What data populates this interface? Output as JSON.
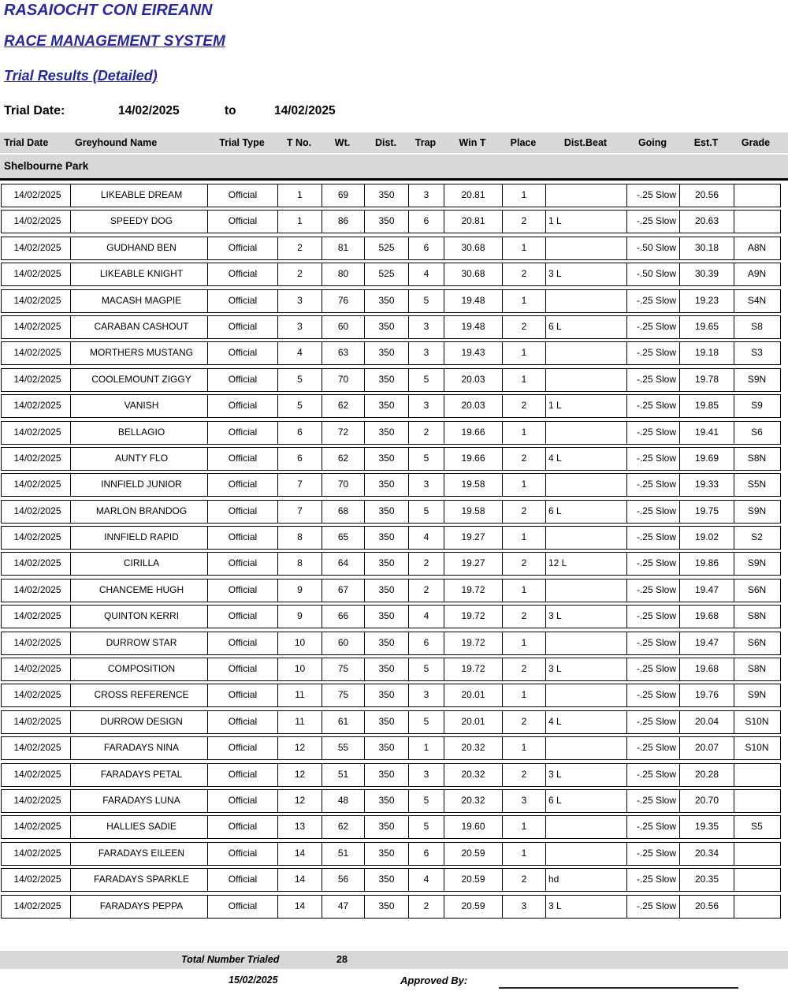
{
  "header": {
    "org_title": "RASAIOCHT CON EIREANN",
    "system_title": "RACE MANAGEMENT SYSTEM",
    "report_title": "Trial Results (Detailed)",
    "trial_date_label": "Trial Date:",
    "date_from": "14/02/2025",
    "to_word": "to",
    "date_to": "14/02/2025"
  },
  "table": {
    "columns": [
      "Trial Date",
      "Greyhound Name",
      "Trial Type",
      "T No.",
      "Wt.",
      "Dist.",
      "Trap",
      "Win T",
      "Place",
      "Dist.Beat",
      "Going",
      "Est.T",
      "Grade"
    ],
    "track_section": "Shelbourne Park",
    "rows": [
      [
        "14/02/2025",
        "LIKEABLE DREAM",
        "Official",
        "1",
        "69",
        "350",
        "3",
        "20.81",
        "1",
        "",
        "-.25 Slow",
        "20.56",
        ""
      ],
      [
        "14/02/2025",
        "SPEEDY DOG",
        "Official",
        "1",
        "86",
        "350",
        "6",
        "20.81",
        "2",
        "1 L",
        "-.25 Slow",
        "20.63",
        ""
      ],
      [
        "14/02/2025",
        "GUDHAND BEN",
        "Official",
        "2",
        "81",
        "525",
        "6",
        "30.68",
        "1",
        "",
        "-.50 Slow",
        "30.18",
        "A8N"
      ],
      [
        "14/02/2025",
        "LIKEABLE KNIGHT",
        "Official",
        "2",
        "80",
        "525",
        "4",
        "30.68",
        "2",
        "3 L",
        "-.50 Slow",
        "30.39",
        "A9N"
      ],
      [
        "14/02/2025",
        "MACASH MAGPIE",
        "Official",
        "3",
        "76",
        "350",
        "5",
        "19.48",
        "1",
        "",
        "-.25 Slow",
        "19.23",
        "S4N"
      ],
      [
        "14/02/2025",
        "CARABAN CASHOUT",
        "Official",
        "3",
        "60",
        "350",
        "3",
        "19.48",
        "2",
        "6 L",
        "-.25 Slow",
        "19.65",
        "S8"
      ],
      [
        "14/02/2025",
        "MORTHERS MUSTANG",
        "Official",
        "4",
        "63",
        "350",
        "3",
        "19.43",
        "1",
        "",
        "-.25 Slow",
        "19.18",
        "S3"
      ],
      [
        "14/02/2025",
        "COOLEMOUNT ZIGGY",
        "Official",
        "5",
        "70",
        "350",
        "5",
        "20.03",
        "1",
        "",
        "-.25 Slow",
        "19.78",
        "S9N"
      ],
      [
        "14/02/2025",
        "VANISH",
        "Official",
        "5",
        "62",
        "350",
        "3",
        "20.03",
        "2",
        "1 L",
        "-.25 Slow",
        "19.85",
        "S9"
      ],
      [
        "14/02/2025",
        "BELLAGIO",
        "Official",
        "6",
        "72",
        "350",
        "2",
        "19.66",
        "1",
        "",
        "-.25 Slow",
        "19.41",
        "S6"
      ],
      [
        "14/02/2025",
        "AUNTY FLO",
        "Official",
        "6",
        "62",
        "350",
        "5",
        "19.66",
        "2",
        "4 L",
        "-.25 Slow",
        "19.69",
        "S8N"
      ],
      [
        "14/02/2025",
        "INNFIELD JUNIOR",
        "Official",
        "7",
        "70",
        "350",
        "3",
        "19.58",
        "1",
        "",
        "-.25 Slow",
        "19.33",
        "S5N"
      ],
      [
        "14/02/2025",
        "MARLON BRANDOG",
        "Official",
        "7",
        "68",
        "350",
        "5",
        "19.58",
        "2",
        "6 L",
        "-.25 Slow",
        "19.75",
        "S9N"
      ],
      [
        "14/02/2025",
        "INNFIELD RAPID",
        "Official",
        "8",
        "65",
        "350",
        "4",
        "19.27",
        "1",
        "",
        "-.25 Slow",
        "19.02",
        "S2"
      ],
      [
        "14/02/2025",
        "CIRILLA",
        "Official",
        "8",
        "64",
        "350",
        "2",
        "19.27",
        "2",
        "12 L",
        "-.25 Slow",
        "19.86",
        "S9N"
      ],
      [
        "14/02/2025",
        "CHANCEME HUGH",
        "Official",
        "9",
        "67",
        "350",
        "2",
        "19.72",
        "1",
        "",
        "-.25 Slow",
        "19.47",
        "S6N"
      ],
      [
        "14/02/2025",
        "QUINTON KERRI",
        "Official",
        "9",
        "66",
        "350",
        "4",
        "19.72",
        "2",
        "3 L",
        "-.25 Slow",
        "19.68",
        "S8N"
      ],
      [
        "14/02/2025",
        "DURROW STAR",
        "Official",
        "10",
        "60",
        "350",
        "6",
        "19.72",
        "1",
        "",
        "-.25 Slow",
        "19.47",
        "S6N"
      ],
      [
        "14/02/2025",
        "COMPOSITION",
        "Official",
        "10",
        "75",
        "350",
        "5",
        "19.72",
        "2",
        "3 L",
        "-.25 Slow",
        "19.68",
        "S8N"
      ],
      [
        "14/02/2025",
        "CROSS REFERENCE",
        "Official",
        "11",
        "75",
        "350",
        "3",
        "20.01",
        "1",
        "",
        "-.25 Slow",
        "19.76",
        "S9N"
      ],
      [
        "14/02/2025",
        "DURROW DESIGN",
        "Official",
        "11",
        "61",
        "350",
        "5",
        "20.01",
        "2",
        "4 L",
        "-.25 Slow",
        "20.04",
        "S10N"
      ],
      [
        "14/02/2025",
        "FARADAYS NINA",
        "Official",
        "12",
        "55",
        "350",
        "1",
        "20.32",
        "1",
        "",
        "-.25 Slow",
        "20.07",
        "S10N"
      ],
      [
        "14/02/2025",
        "FARADAYS PETAL",
        "Official",
        "12",
        "51",
        "350",
        "3",
        "20.32",
        "2",
        "3 L",
        "-.25 Slow",
        "20.28",
        ""
      ],
      [
        "14/02/2025",
        "FARADAYS LUNA",
        "Official",
        "12",
        "48",
        "350",
        "5",
        "20.32",
        "3",
        "6 L",
        "-.25 Slow",
        "20.70",
        ""
      ],
      [
        "14/02/2025",
        "HALLIES SADIE",
        "Official",
        "13",
        "62",
        "350",
        "5",
        "19.60",
        "1",
        "",
        "-.25 Slow",
        "19.35",
        "S5"
      ],
      [
        "14/02/2025",
        "FARADAYS EILEEN",
        "Official",
        "14",
        "51",
        "350",
        "6",
        "20.59",
        "1",
        "",
        "-.25 Slow",
        "20.34",
        ""
      ],
      [
        "14/02/2025",
        "FARADAYS SPARKLE",
        "Official",
        "14",
        "56",
        "350",
        "4",
        "20.59",
        "2",
        "hd",
        "-.25 Slow",
        "20.35",
        ""
      ],
      [
        "14/02/2025",
        "FARADAYS PEPPA",
        "Official",
        "14",
        "47",
        "350",
        "2",
        "20.59",
        "3",
        "3 L",
        "-.25 Slow",
        "20.56",
        ""
      ]
    ]
  },
  "footer": {
    "total_label": "Total Number Trialed",
    "total_value": "28",
    "print_date": "15/02/2025",
    "approved_label": "Approved By:"
  },
  "colors": {
    "title_blue": "#28289E",
    "band_gray": "#D8D8D8"
  }
}
